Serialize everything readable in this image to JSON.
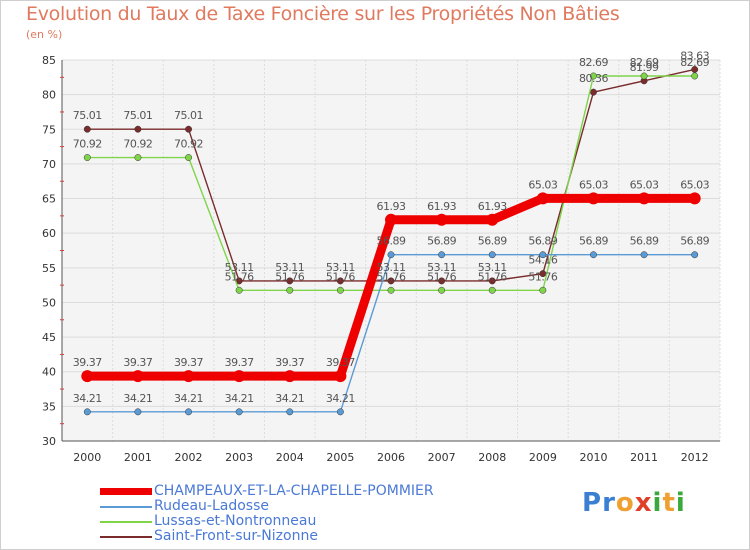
{
  "title": "Evolution du Taux de Taxe Foncière sur les Propriétés Non Bâties",
  "unit_label": "(en %)",
  "logo": {
    "letters": [
      {
        "ch": "P",
        "color": "#3a7fd1"
      },
      {
        "ch": "r",
        "color": "#3a7fd1"
      },
      {
        "ch": "o",
        "color": "#f0a030"
      },
      {
        "ch": "x",
        "color": "#e0402a"
      },
      {
        "ch": "i",
        "color": "#3aa83a"
      },
      {
        "ch": "t",
        "color": "#f0a030"
      },
      {
        "ch": "i",
        "color": "#3aa83a"
      }
    ]
  },
  "chart_data": {
    "type": "line",
    "title": "Evolution du Taux de Taxe Foncière sur les Propriétés Non Bâties",
    "ylabel": "(en %)",
    "x": [
      "2000",
      "2001",
      "2002",
      "2003",
      "2004",
      "2005",
      "2006",
      "2007",
      "2008",
      "2009",
      "2010",
      "2011",
      "2012"
    ],
    "ylim": [
      30,
      85
    ],
    "yticks": [
      30,
      35,
      40,
      45,
      50,
      55,
      60,
      65,
      70,
      75,
      80,
      85
    ],
    "grid": true,
    "legend": "bottom-left",
    "series": [
      {
        "name": "CHAMPEAUX-ET-LA-CHAPELLE-POMMIER",
        "color": "#ee0000",
        "values": [
          39.37,
          39.37,
          39.37,
          39.37,
          39.37,
          39.37,
          61.93,
          61.93,
          61.93,
          65.03,
          65.03,
          65.03,
          65.03
        ],
        "labels": [
          "39.37",
          "39.37",
          "39.37",
          "39.37",
          "39.37",
          "39.37",
          "61.93",
          "61.93",
          "61.93",
          "65.03",
          "65.03",
          "65.03",
          "65.03"
        ]
      },
      {
        "name": "Rudeau-Ladosse",
        "color": "#5b9bd5",
        "values": [
          34.21,
          34.21,
          34.21,
          34.21,
          34.21,
          34.21,
          56.89,
          56.89,
          56.89,
          56.89,
          56.89,
          56.89,
          56.89
        ],
        "labels": [
          "34.21",
          "34.21",
          "34.21",
          "34.21",
          "34.21",
          "34.21",
          "56.89",
          "56.89",
          "56.89",
          "56.89",
          "56.89",
          "56.89",
          "56.89"
        ]
      },
      {
        "name": "Lussas-et-Nontronneau",
        "color": "#7fd44a",
        "values": [
          70.92,
          70.92,
          70.92,
          51.76,
          51.76,
          51.76,
          51.76,
          51.76,
          51.76,
          51.76,
          82.69,
          82.69,
          82.69
        ],
        "labels": [
          "70.92",
          "70.92",
          "70.92",
          "51.76",
          "51.76",
          "51.76",
          "51.76",
          "51.76",
          "51.76",
          "51.76",
          "82.69",
          "82.69",
          "82.69"
        ]
      },
      {
        "name": "Saint-Front-sur-Nizonne",
        "color": "#7a2b2b",
        "values": [
          75.01,
          75.01,
          75.01,
          53.11,
          53.11,
          53.11,
          53.11,
          53.11,
          53.11,
          54.16,
          80.36,
          81.99,
          83.63
        ],
        "labels": [
          "75.01",
          "75.01",
          "75.01",
          "53.11",
          "53.11",
          "53.11",
          "53.11",
          "53.11",
          "53.11",
          "54.16",
          "80.36",
          "81.99",
          "83.63"
        ]
      }
    ]
  }
}
